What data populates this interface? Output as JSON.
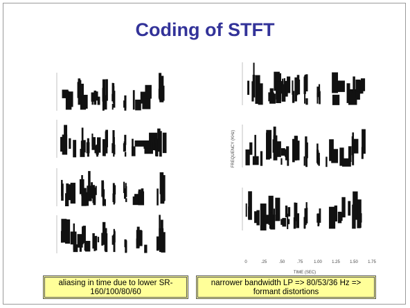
{
  "slide": {
    "title": "Coding of STFT",
    "right_figure": {
      "x_ticks": [
        "0",
        ".25",
        ".50",
        ".75",
        "1.00",
        "1.25",
        "1.50",
        "1.75"
      ],
      "x_label": "TIME (SEC)",
      "y_label": "FREQUENCY (KHz)"
    },
    "captions": [
      "aliasing in time due to lower SR-160/100/80/60",
      "narrower bandwidth LP => 80/53/36 Hz => formant distortions"
    ]
  }
}
